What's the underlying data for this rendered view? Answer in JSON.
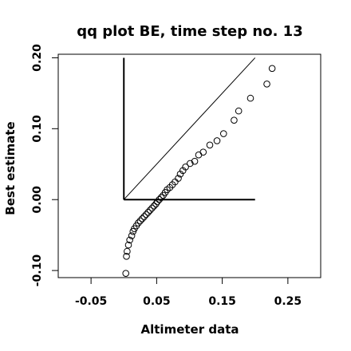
{
  "chart_data": {
    "type": "scatter",
    "title": "qq plot BE, time step no. 13",
    "xlabel": "Altimeter data",
    "ylabel": "Best estimate",
    "xlim": [
      -0.1,
      0.3
    ],
    "ylim": [
      -0.11,
      0.205
    ],
    "xticks": [
      -0.05,
      0.05,
      0.15,
      0.25
    ],
    "xtick_labels": [
      "-0.05",
      "0.05",
      "0.15",
      "0.25"
    ],
    "yticks": [
      -0.1,
      0.0,
      0.1,
      0.2
    ],
    "ytick_labels": [
      "-0.10",
      "0.00",
      "0.10",
      "0.20"
    ],
    "grid": false,
    "reference_lines": [
      {
        "x": [
          0.0,
          0.2
        ],
        "y": [
          0.0,
          0.2
        ],
        "width": 1
      },
      {
        "x": [
          0.0,
          0.0
        ],
        "y": [
          0.0,
          0.2
        ],
        "width": 2
      },
      {
        "x": [
          0.0,
          0.2
        ],
        "y": [
          0.0,
          0.0
        ],
        "width": 2
      }
    ],
    "points": [
      {
        "x": 0.003,
        "y": -0.104
      },
      {
        "x": 0.004,
        "y": -0.08
      },
      {
        "x": 0.005,
        "y": -0.073
      },
      {
        "x": 0.007,
        "y": -0.064
      },
      {
        "x": 0.009,
        "y": -0.057
      },
      {
        "x": 0.012,
        "y": -0.051
      },
      {
        "x": 0.014,
        "y": -0.045
      },
      {
        "x": 0.016,
        "y": -0.041
      },
      {
        "x": 0.019,
        "y": -0.037
      },
      {
        "x": 0.022,
        "y": -0.033
      },
      {
        "x": 0.025,
        "y": -0.03
      },
      {
        "x": 0.028,
        "y": -0.027
      },
      {
        "x": 0.031,
        "y": -0.024
      },
      {
        "x": 0.034,
        "y": -0.021
      },
      {
        "x": 0.037,
        "y": -0.018
      },
      {
        "x": 0.04,
        "y": -0.015
      },
      {
        "x": 0.043,
        "y": -0.012
      },
      {
        "x": 0.046,
        "y": -0.009
      },
      {
        "x": 0.049,
        "y": -0.006
      },
      {
        "x": 0.051,
        "y": -0.003
      },
      {
        "x": 0.054,
        "y": 0.0
      },
      {
        "x": 0.057,
        "y": 0.003
      },
      {
        "x": 0.06,
        "y": 0.006
      },
      {
        "x": 0.063,
        "y": 0.01
      },
      {
        "x": 0.066,
        "y": 0.014
      },
      {
        "x": 0.07,
        "y": 0.017
      },
      {
        "x": 0.074,
        "y": 0.021
      },
      {
        "x": 0.078,
        "y": 0.025
      },
      {
        "x": 0.083,
        "y": 0.03
      },
      {
        "x": 0.086,
        "y": 0.036
      },
      {
        "x": 0.09,
        "y": 0.041
      },
      {
        "x": 0.094,
        "y": 0.046
      },
      {
        "x": 0.101,
        "y": 0.051
      },
      {
        "x": 0.108,
        "y": 0.054
      },
      {
        "x": 0.114,
        "y": 0.063
      },
      {
        "x": 0.121,
        "y": 0.067
      },
      {
        "x": 0.131,
        "y": 0.077
      },
      {
        "x": 0.142,
        "y": 0.083
      },
      {
        "x": 0.152,
        "y": 0.093
      },
      {
        "x": 0.168,
        "y": 0.112
      },
      {
        "x": 0.175,
        "y": 0.125
      },
      {
        "x": 0.193,
        "y": 0.143
      },
      {
        "x": 0.218,
        "y": 0.163
      },
      {
        "x": 0.226,
        "y": 0.185
      }
    ]
  }
}
